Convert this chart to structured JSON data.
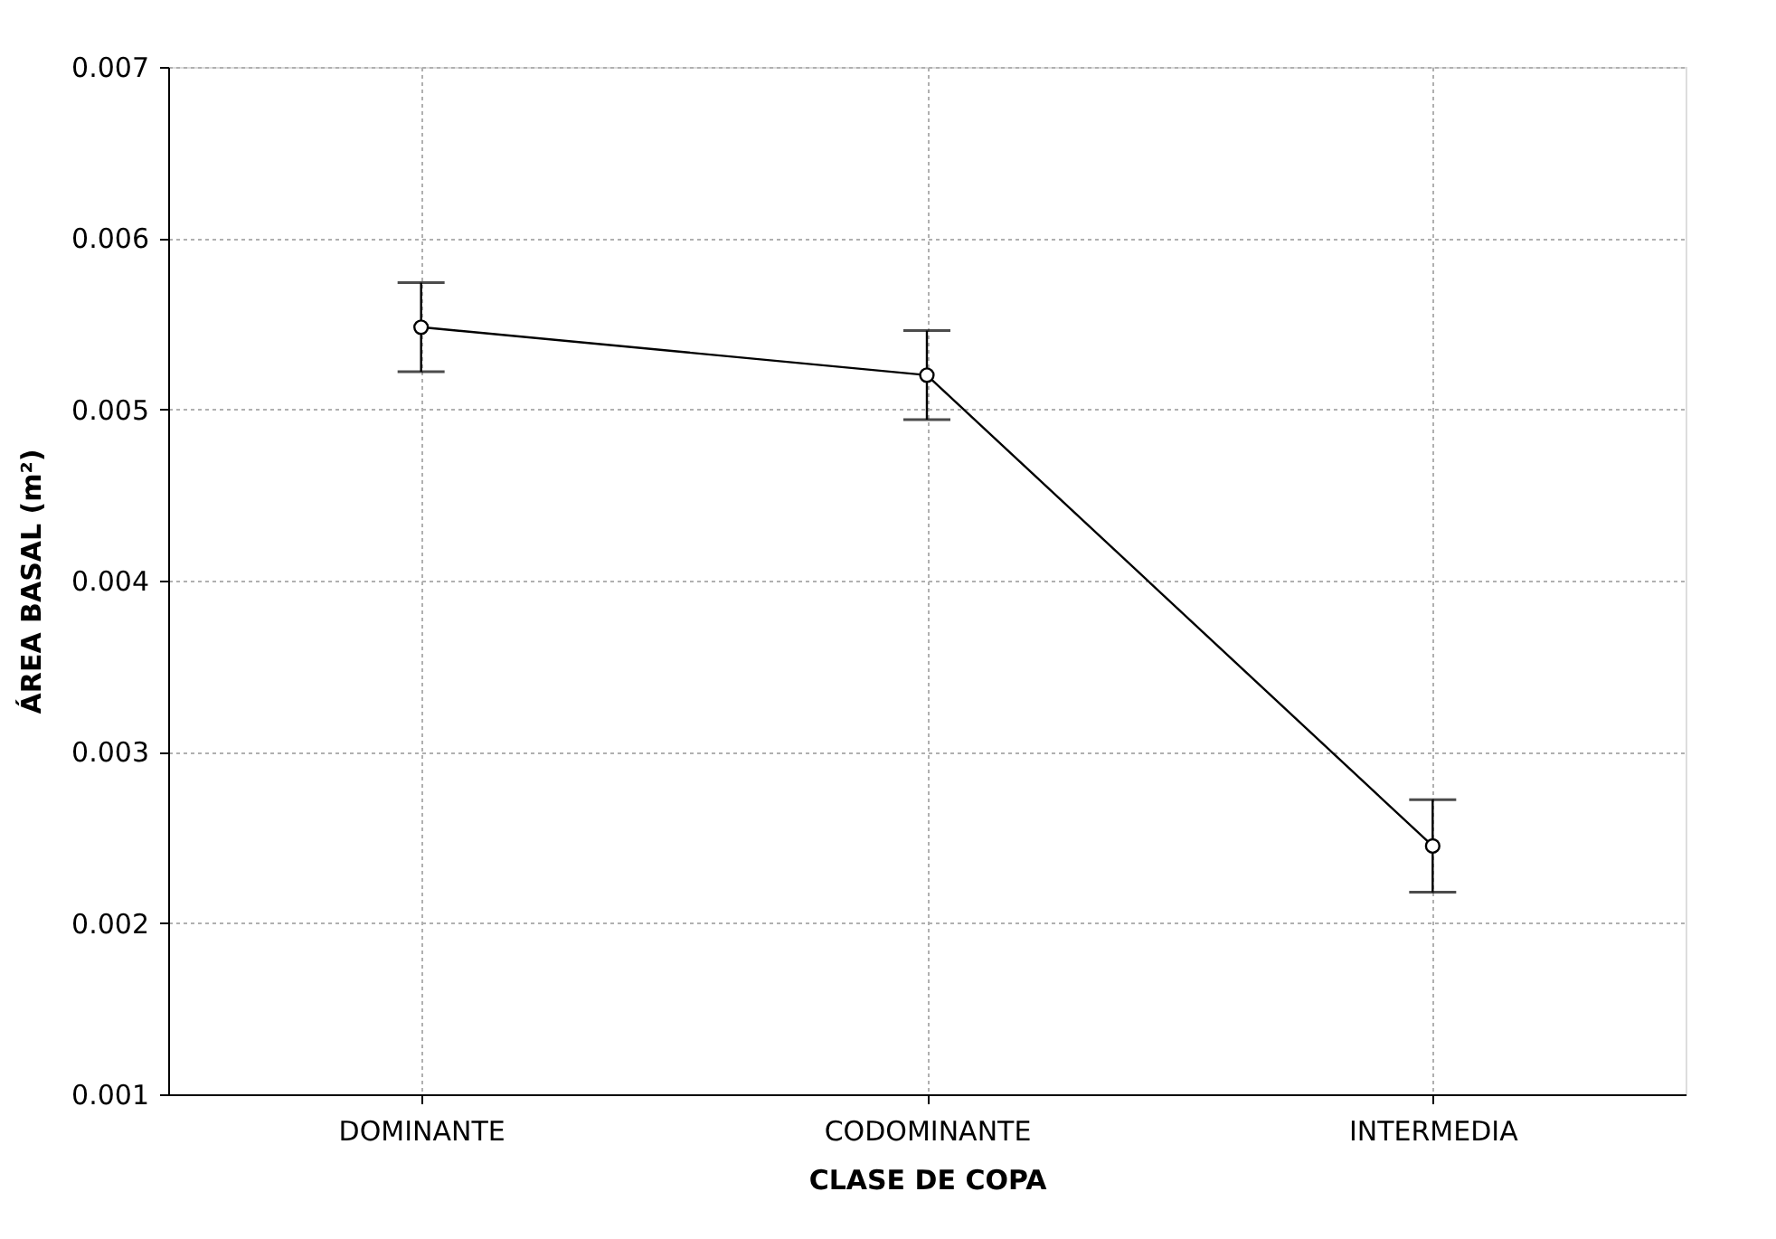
{
  "chart_data": {
    "type": "line",
    "xlabel": "CLASE DE COPA",
    "ylabel": "ÁREA BASAL (m²)",
    "categories": [
      "DOMINANTE",
      "CODOMINANTE",
      "INTERMEDIA"
    ],
    "series": [
      {
        "color": "#000000",
        "values": [
          0.00548,
          0.0052,
          0.00245
        ],
        "errors": [
          0.00026,
          0.00026,
          0.00027
        ]
      }
    ],
    "ylim": [
      0.001,
      0.007
    ],
    "yticks": [
      0.001,
      0.002,
      0.003,
      0.004,
      0.005,
      0.006,
      0.007
    ],
    "grid": true,
    "marker": "circle",
    "line_style": "solid"
  }
}
